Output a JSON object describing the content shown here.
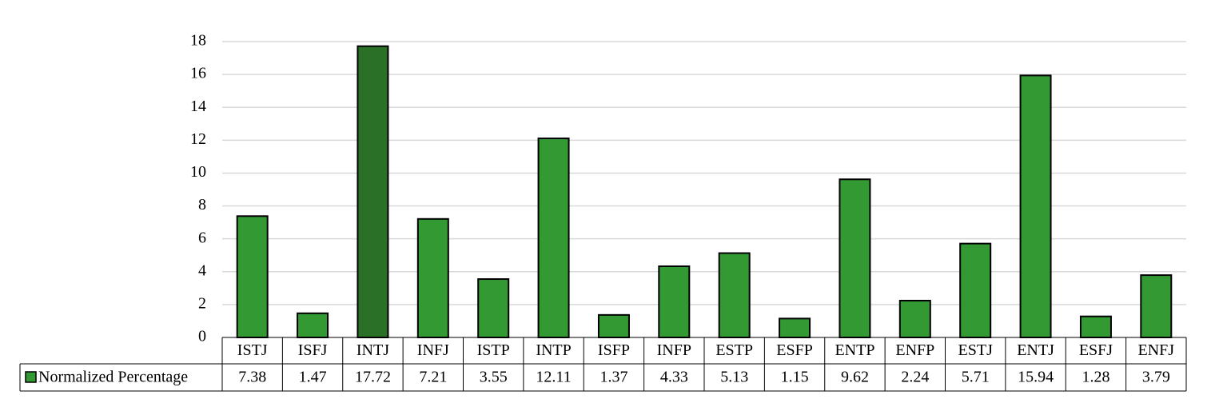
{
  "chart_data": {
    "type": "bar",
    "categories": [
      "ISTJ",
      "ISFJ",
      "INTJ",
      "INFJ",
      "ISTP",
      "INTP",
      "ISFP",
      "INFP",
      "ESTP",
      "ESFP",
      "ENTP",
      "ENFP",
      "ESTJ",
      "ENTJ",
      "ESFJ",
      "ENFJ"
    ],
    "series": [
      {
        "name": "Normalized Percentage",
        "color": "#339933",
        "colors": [
          "#339933",
          "#339933",
          "#2a7026",
          "#339933",
          "#339933",
          "#339933",
          "#339933",
          "#339933",
          "#339933",
          "#339933",
          "#339933",
          "#339933",
          "#339933",
          "#339933",
          "#339933",
          "#339933"
        ],
        "values": [
          7.38,
          1.47,
          17.72,
          7.21,
          3.55,
          12.11,
          1.37,
          4.33,
          5.13,
          1.15,
          9.62,
          2.24,
          5.71,
          15.94,
          1.28,
          3.79
        ]
      }
    ],
    "ylim": [
      0,
      18
    ],
    "yticks": [
      0,
      2,
      4,
      6,
      8,
      10,
      12,
      14,
      16,
      18
    ],
    "grid": true,
    "data_table": true
  }
}
